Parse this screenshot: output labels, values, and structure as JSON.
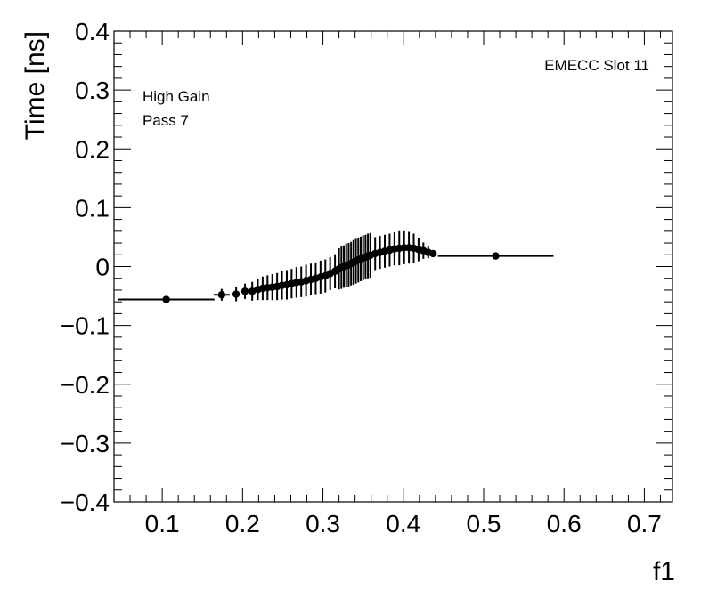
{
  "chart_data": {
    "type": "scatter",
    "title": "",
    "xlabel": "f1",
    "ylabel": "Time [ns]",
    "xlim": [
      0.04,
      0.735
    ],
    "ylim": [
      -0.4,
      0.4
    ],
    "x_ticks": [
      0.1,
      0.2,
      0.3,
      0.4,
      0.5,
      0.6,
      0.7
    ],
    "x_tick_labels": [
      "0.1",
      "0.2",
      "0.3",
      "0.4",
      "0.5",
      "0.6",
      "0.7"
    ],
    "y_ticks": [
      -0.4,
      -0.3,
      -0.2,
      -0.1,
      0,
      0.1,
      0.2,
      0.3,
      0.4
    ],
    "y_tick_labels": [
      "−0.4",
      "−0.3",
      "−0.2",
      "−0.1",
      "0",
      "0.1",
      "0.2",
      "0.3",
      "0.4"
    ],
    "grid": false,
    "annotations": {
      "top_right": "EMECC Slot 11",
      "line1": "High Gain",
      "line2": "Pass 7"
    },
    "marker_color": "#000000",
    "series": [
      {
        "points": [
          {
            "x": 0.105,
            "y": -0.056,
            "xerr": 0.06,
            "yerr": 0.004
          },
          {
            "x": 0.174,
            "y": -0.048,
            "xerr": 0.01,
            "yerr": 0.01
          },
          {
            "x": 0.192,
            "y": -0.047,
            "xerr": 0.004,
            "yerr": 0.012
          },
          {
            "x": 0.203,
            "y": -0.042,
            "xerr": 0.003,
            "yerr": 0.013
          },
          {
            "x": 0.212,
            "y": -0.042,
            "xerr": 0.003,
            "yerr": 0.016
          },
          {
            "x": 0.219,
            "y": -0.039,
            "xerr": 0.002,
            "yerr": 0.018
          },
          {
            "x": 0.225,
            "y": -0.037,
            "xerr": 0.002,
            "yerr": 0.02
          },
          {
            "x": 0.231,
            "y": -0.036,
            "xerr": 0.002,
            "yerr": 0.021
          },
          {
            "x": 0.237,
            "y": -0.035,
            "xerr": 0.002,
            "yerr": 0.022
          },
          {
            "x": 0.243,
            "y": -0.034,
            "xerr": 0.002,
            "yerr": 0.023
          },
          {
            "x": 0.249,
            "y": -0.032,
            "xerr": 0.002,
            "yerr": 0.024
          },
          {
            "x": 0.255,
            "y": -0.031,
            "xerr": 0.002,
            "yerr": 0.025
          },
          {
            "x": 0.261,
            "y": -0.029,
            "xerr": 0.002,
            "yerr": 0.025
          },
          {
            "x": 0.267,
            "y": -0.027,
            "xerr": 0.002,
            "yerr": 0.026
          },
          {
            "x": 0.273,
            "y": -0.026,
            "xerr": 0.002,
            "yerr": 0.026
          },
          {
            "x": 0.279,
            "y": -0.024,
            "xerr": 0.002,
            "yerr": 0.027
          },
          {
            "x": 0.285,
            "y": -0.022,
            "xerr": 0.002,
            "yerr": 0.027
          },
          {
            "x": 0.291,
            "y": -0.02,
            "xerr": 0.002,
            "yerr": 0.027
          },
          {
            "x": 0.297,
            "y": -0.018,
            "xerr": 0.002,
            "yerr": 0.028
          },
          {
            "x": 0.303,
            "y": -0.016,
            "xerr": 0.002,
            "yerr": 0.028
          },
          {
            "x": 0.309,
            "y": -0.012,
            "xerr": 0.002,
            "yerr": 0.028
          },
          {
            "x": 0.315,
            "y": -0.008,
            "xerr": 0.002,
            "yerr": 0.029
          },
          {
            "x": 0.32,
            "y": -0.004,
            "xerr": 0.001,
            "yerr": 0.035
          },
          {
            "x": 0.323,
            "y": -0.002,
            "xerr": 0.001,
            "yerr": 0.036
          },
          {
            "x": 0.326,
            "y": 0.0,
            "xerr": 0.001,
            "yerr": 0.036
          },
          {
            "x": 0.329,
            "y": 0.002,
            "xerr": 0.001,
            "yerr": 0.037
          },
          {
            "x": 0.332,
            "y": 0.003,
            "xerr": 0.001,
            "yerr": 0.037
          },
          {
            "x": 0.335,
            "y": 0.005,
            "xerr": 0.001,
            "yerr": 0.037
          },
          {
            "x": 0.338,
            "y": 0.007,
            "xerr": 0.001,
            "yerr": 0.038
          },
          {
            "x": 0.341,
            "y": 0.009,
            "xerr": 0.001,
            "yerr": 0.038
          },
          {
            "x": 0.344,
            "y": 0.011,
            "xerr": 0.001,
            "yerr": 0.038
          },
          {
            "x": 0.347,
            "y": 0.013,
            "xerr": 0.001,
            "yerr": 0.038
          },
          {
            "x": 0.35,
            "y": 0.015,
            "xerr": 0.001,
            "yerr": 0.038
          },
          {
            "x": 0.353,
            "y": 0.016,
            "xerr": 0.001,
            "yerr": 0.038
          },
          {
            "x": 0.356,
            "y": 0.018,
            "xerr": 0.001,
            "yerr": 0.038
          },
          {
            "x": 0.359,
            "y": 0.019,
            "xerr": 0.001,
            "yerr": 0.038
          },
          {
            "x": 0.365,
            "y": 0.022,
            "xerr": 0.002,
            "yerr": 0.028
          },
          {
            "x": 0.371,
            "y": 0.024,
            "xerr": 0.002,
            "yerr": 0.028
          },
          {
            "x": 0.377,
            "y": 0.026,
            "xerr": 0.002,
            "yerr": 0.028
          },
          {
            "x": 0.383,
            "y": 0.028,
            "xerr": 0.002,
            "yerr": 0.028
          },
          {
            "x": 0.389,
            "y": 0.03,
            "xerr": 0.002,
            "yerr": 0.028
          },
          {
            "x": 0.395,
            "y": 0.031,
            "xerr": 0.002,
            "yerr": 0.029
          },
          {
            "x": 0.401,
            "y": 0.032,
            "xerr": 0.002,
            "yerr": 0.028
          },
          {
            "x": 0.407,
            "y": 0.032,
            "xerr": 0.002,
            "yerr": 0.027
          },
          {
            "x": 0.413,
            "y": 0.031,
            "xerr": 0.002,
            "yerr": 0.025
          },
          {
            "x": 0.419,
            "y": 0.029,
            "xerr": 0.002,
            "yerr": 0.02
          },
          {
            "x": 0.425,
            "y": 0.027,
            "xerr": 0.002,
            "yerr": 0.014
          },
          {
            "x": 0.431,
            "y": 0.024,
            "xerr": 0.002,
            "yerr": 0.01
          },
          {
            "x": 0.437,
            "y": 0.022,
            "xerr": 0.003,
            "yerr": 0.006
          },
          {
            "x": 0.515,
            "y": 0.018,
            "xerr": 0.072,
            "yerr": 0.004
          }
        ]
      }
    ]
  }
}
